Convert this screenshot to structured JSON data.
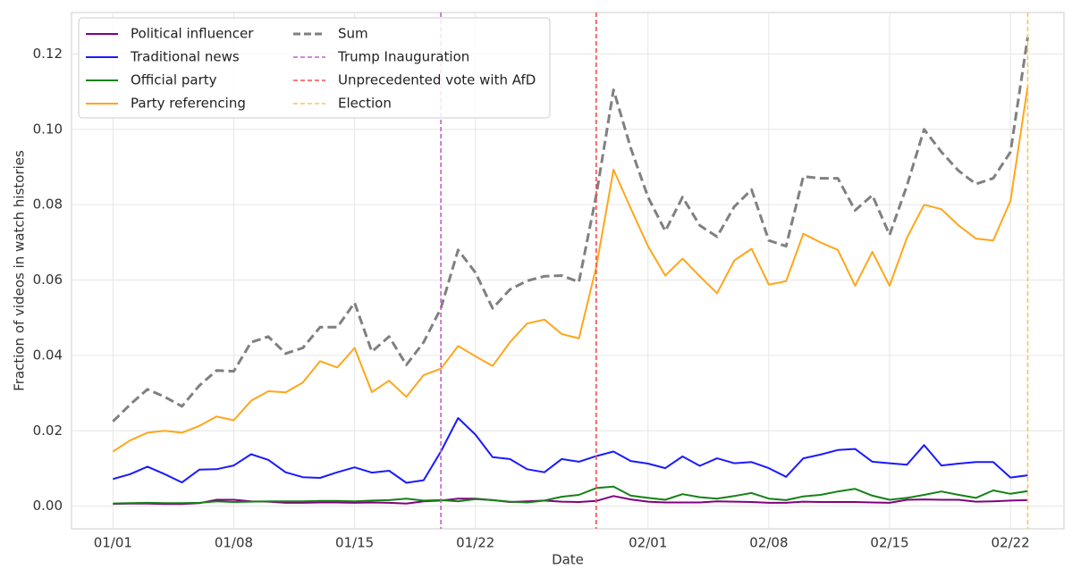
{
  "chart_data": {
    "type": "line",
    "xlabel": "Date",
    "ylabel": "Fraction of videos in watch histories",
    "x": [
      "01/01",
      "01/02",
      "01/03",
      "01/04",
      "01/05",
      "01/06",
      "01/07",
      "01/08",
      "01/09",
      "01/10",
      "01/11",
      "01/12",
      "01/13",
      "01/14",
      "01/15",
      "01/16",
      "01/17",
      "01/18",
      "01/19",
      "01/20",
      "01/21",
      "01/22",
      "01/23",
      "01/24",
      "01/25",
      "01/26",
      "01/27",
      "01/28",
      "01/29",
      "01/30",
      "01/31",
      "02/01",
      "02/02",
      "02/03",
      "02/04",
      "02/05",
      "02/06",
      "02/07",
      "02/08",
      "02/09",
      "02/10",
      "02/11",
      "02/12",
      "02/13",
      "02/14",
      "02/15",
      "02/16",
      "02/17",
      "02/18",
      "02/19",
      "02/20",
      "02/21",
      "02/22",
      "02/23"
    ],
    "xticks": [
      "01/01",
      "01/08",
      "01/15",
      "01/22",
      "02/01",
      "02/08",
      "02/15",
      "02/22"
    ],
    "ylim": [
      -0.006,
      0.131
    ],
    "yticks": [
      {
        "value": 0,
        "label": "0.00"
      },
      {
        "value": 0.02,
        "label": "0.02"
      },
      {
        "value": 0.04,
        "label": "0.04"
      },
      {
        "value": 0.06,
        "label": "0.06"
      },
      {
        "value": 0.08,
        "label": "0.08"
      },
      {
        "value": 0.1,
        "label": "0.10"
      },
      {
        "value": 0.12,
        "label": "0.12"
      }
    ],
    "grid": true,
    "legend": "upper left",
    "series": [
      {
        "name": "Political influencer",
        "color": "#800080",
        "values": [
          0.0006,
          0.0007,
          0.0007,
          0.0006,
          0.0006,
          0.0008,
          0.0017,
          0.0017,
          0.0013,
          0.0012,
          0.0009,
          0.0009,
          0.001,
          0.001,
          0.0009,
          0.001,
          0.0009,
          0.0007,
          0.0013,
          0.0015,
          0.002,
          0.002,
          0.0016,
          0.0011,
          0.0013,
          0.0015,
          0.0012,
          0.0011,
          0.0014,
          0.0027,
          0.0018,
          0.0012,
          0.001,
          0.001,
          0.001,
          0.0013,
          0.0012,
          0.0011,
          0.0009,
          0.0009,
          0.0012,
          0.0011,
          0.0011,
          0.0011,
          0.001,
          0.0009,
          0.0017,
          0.0018,
          0.0017,
          0.0017,
          0.0012,
          0.0013,
          0.0015,
          0.0016
        ]
      },
      {
        "name": "Traditional news",
        "color": "#1a1aff",
        "values": [
          0.0072,
          0.0085,
          0.0105,
          0.0085,
          0.0063,
          0.0097,
          0.0098,
          0.0108,
          0.0138,
          0.0123,
          0.009,
          0.0077,
          0.0075,
          0.009,
          0.0103,
          0.0089,
          0.0094,
          0.0062,
          0.0069,
          0.0145,
          0.0234,
          0.019,
          0.013,
          0.0125,
          0.0098,
          0.009,
          0.0125,
          0.0118,
          0.0133,
          0.0145,
          0.012,
          0.0113,
          0.0101,
          0.0132,
          0.0107,
          0.0127,
          0.0114,
          0.0117,
          0.0101,
          0.0078,
          0.0127,
          0.0137,
          0.0149,
          0.0152,
          0.0118,
          0.0114,
          0.011,
          0.0162,
          0.0108,
          0.0113,
          0.0117,
          0.0117,
          0.0076,
          0.0082
        ]
      },
      {
        "name": "Official party",
        "color": "#148214",
        "values": [
          0.0007,
          0.0008,
          0.0009,
          0.0008,
          0.0008,
          0.0009,
          0.0013,
          0.0011,
          0.0012,
          0.0013,
          0.0013,
          0.0013,
          0.0014,
          0.0014,
          0.0013,
          0.0015,
          0.0016,
          0.002,
          0.0015,
          0.0016,
          0.0013,
          0.0019,
          0.0016,
          0.0012,
          0.001,
          0.0015,
          0.0025,
          0.003,
          0.0048,
          0.0052,
          0.0028,
          0.0022,
          0.0017,
          0.0032,
          0.0024,
          0.002,
          0.0027,
          0.0035,
          0.002,
          0.0016,
          0.0026,
          0.003,
          0.0039,
          0.0046,
          0.0028,
          0.0017,
          0.0022,
          0.003,
          0.0039,
          0.003,
          0.0022,
          0.0042,
          0.0033,
          0.004
        ]
      },
      {
        "name": "Party referencing",
        "color": "#ffa61a",
        "values": [
          0.0145,
          0.0175,
          0.0195,
          0.02,
          0.0195,
          0.0213,
          0.0238,
          0.0228,
          0.028,
          0.0305,
          0.0302,
          0.0328,
          0.0385,
          0.0368,
          0.042,
          0.0303,
          0.0333,
          0.029,
          0.0348,
          0.0365,
          0.0425,
          0.0398,
          0.0372,
          0.0435,
          0.0485,
          0.0495,
          0.0457,
          0.0445,
          0.0635,
          0.0893,
          0.079,
          0.069,
          0.0612,
          0.0657,
          0.061,
          0.0565,
          0.0652,
          0.0683,
          0.0588,
          0.0597,
          0.0723,
          0.07,
          0.068,
          0.0585,
          0.0675,
          0.0585,
          0.0712,
          0.08,
          0.0788,
          0.0745,
          0.071,
          0.0705,
          0.081,
          0.1115
        ]
      },
      {
        "name": "Sum",
        "color": "#808080",
        "dashed": true,
        "values": [
          0.0225,
          0.027,
          0.031,
          0.029,
          0.0265,
          0.032,
          0.036,
          0.0358,
          0.0435,
          0.045,
          0.0405,
          0.042,
          0.0475,
          0.0475,
          0.054,
          0.041,
          0.045,
          0.0375,
          0.0435,
          0.0525,
          0.068,
          0.062,
          0.0525,
          0.0575,
          0.0598,
          0.061,
          0.0612,
          0.0595,
          0.0825,
          0.1105,
          0.095,
          0.082,
          0.073,
          0.082,
          0.0745,
          0.0715,
          0.0795,
          0.084,
          0.0705,
          0.069,
          0.0875,
          0.087,
          0.087,
          0.0785,
          0.0825,
          0.072,
          0.085,
          0.1,
          0.094,
          0.089,
          0.0855,
          0.087,
          0.094,
          0.1245
        ]
      }
    ],
    "vlines": [
      {
        "name": "Trump Inauguration",
        "color": "#c060c8",
        "x": "01/20"
      },
      {
        "name": "Unprecedented vote with AfD",
        "color": "#f05050",
        "x": "01/29"
      },
      {
        "name": "Election",
        "color": "#ffc060",
        "x": "02/23"
      }
    ]
  }
}
